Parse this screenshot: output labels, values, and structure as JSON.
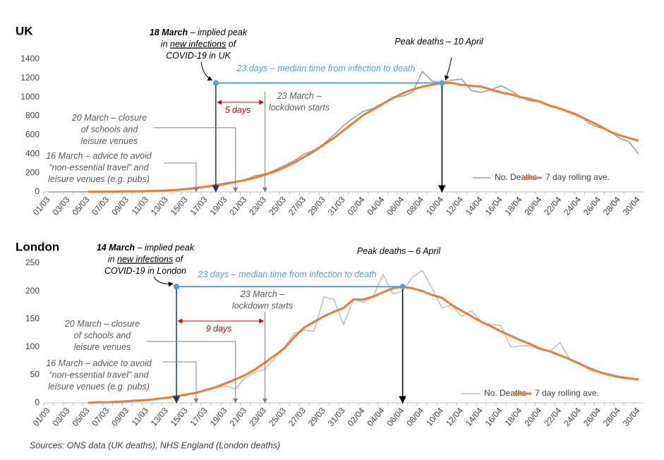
{
  "chart_data": [
    {
      "type": "line",
      "title": "UK",
      "categories": [
        "01/03",
        null,
        "03/03",
        null,
        "05/03",
        null,
        "07/03",
        null,
        "09/03",
        null,
        "11/03",
        null,
        "13/03",
        null,
        "15/03",
        null,
        "17/03",
        null,
        "19/03",
        null,
        "21/03",
        null,
        "23/03",
        null,
        "25/03",
        null,
        "27/03",
        null,
        "29/03",
        null,
        "31/03",
        null,
        "02/04",
        null,
        "04/04",
        null,
        "06/04",
        null,
        "08/04",
        null,
        "10/04",
        null,
        "12/04",
        null,
        "14/04",
        null,
        "16/04",
        null,
        "18/04",
        null,
        "20/04",
        null,
        "22/04",
        null,
        "24/04",
        null,
        "26/04",
        null,
        "28/04",
        null,
        "30/04"
      ],
      "series": [
        {
          "name": "No. Deaths",
          "color": "#a0a0a0",
          "values": [
            0,
            0,
            1,
            1,
            2,
            3,
            3,
            4,
            6,
            8,
            10,
            14,
            20,
            25,
            35,
            50,
            60,
            75,
            95,
            110,
            130,
            170,
            190,
            230,
            280,
            330,
            400,
            440,
            510,
            600,
            700,
            780,
            850,
            880,
            940,
            1000,
            1010,
            1050,
            1270,
            1170,
            1150,
            1180,
            1190,
            1070,
            1050,
            1080,
            1120,
            1070,
            1000,
            960,
            950,
            900,
            880,
            850,
            810,
            720,
            680,
            650,
            570,
            530,
            400
          ]
        },
        {
          "name": "7 day rolling ave.",
          "color": "#ed7d31",
          "values": [
            null,
            null,
            null,
            null,
            2,
            3,
            3,
            4,
            5,
            6,
            8,
            11,
            15,
            21,
            30,
            40,
            55,
            70,
            85,
            105,
            125,
            150,
            180,
            215,
            260,
            310,
            370,
            430,
            500,
            570,
            650,
            730,
            810,
            870,
            930,
            990,
            1040,
            1080,
            1110,
            1130,
            1150,
            1150,
            1130,
            1120,
            1110,
            1080,
            1050,
            1030,
            1000,
            980,
            950,
            910,
            880,
            840,
            800,
            750,
            700,
            640,
            600,
            570,
            540
          ]
        }
      ],
      "ylim": [
        0,
        1400
      ],
      "yticks": [
        0,
        200,
        400,
        600,
        800,
        1000,
        1200,
        1400
      ],
      "grid": false,
      "legend": "lower right",
      "annotations": [
        {
          "lines": [
            [
              "18 March",
              " – implied peak"
            ],
            [
              "in ",
              "new infections",
              " of"
            ],
            [
              "COVID-19 in UK"
            ]
          ]
        },
        {
          "lines": [
            [
              "Peak deaths – 10 April"
            ]
          ]
        },
        {
          "lines": [
            [
              "23 days – median time from infection to death"
            ]
          ]
        },
        {
          "lines": [
            [
              "5 days"
            ]
          ]
        },
        {
          "lines": [
            [
              "23 March –"
            ],
            [
              "lockdown starts"
            ]
          ]
        },
        {
          "lines": [
            [
              "20 March – closure"
            ],
            [
              "of schools and"
            ],
            [
              "leisure venues"
            ]
          ]
        },
        {
          "lines": [
            [
              "16 March – advice to avoid"
            ],
            [
              "“non-essential travel” and"
            ],
            [
              "leisure venues (e.g. pubs)"
            ]
          ]
        }
      ]
    },
    {
      "type": "line",
      "title": "London",
      "categories": [
        "01/03",
        null,
        "03/03",
        null,
        "05/03",
        null,
        "07/03",
        null,
        "09/03",
        null,
        "11/03",
        null,
        "13/03",
        null,
        "15/03",
        null,
        "17/03",
        null,
        "19/03",
        null,
        "21/03",
        null,
        "23/03",
        null,
        "25/03",
        null,
        "27/03",
        null,
        "29/03",
        null,
        "31/03",
        null,
        "02/04",
        null,
        "04/04",
        null,
        "06/04",
        null,
        "08/04",
        null,
        "10/04",
        null,
        "12/04",
        null,
        "14/04",
        null,
        "16/04",
        null,
        "18/04",
        null,
        "20/04",
        null,
        "22/04",
        null,
        "24/04",
        null,
        "26/04",
        null,
        "28/04",
        null,
        "30/04"
      ],
      "series": [
        {
          "name": "No. Deaths",
          "color": "#c0c0c0",
          "values": [
            null,
            null,
            null,
            null,
            0,
            0,
            1,
            1,
            2,
            3,
            5,
            7,
            8,
            12,
            14,
            18,
            22,
            28,
            30,
            25,
            45,
            55,
            60,
            80,
            100,
            125,
            130,
            128,
            190,
            185,
            140,
            185,
            180,
            190,
            230,
            195,
            200,
            225,
            237,
            205,
            170,
            175,
            155,
            165,
            145,
            140,
            138,
            100,
            102,
            102,
            95,
            92,
            108,
            78,
            72,
            58,
            55,
            52,
            48,
            45,
            42
          ]
        },
        {
          "name": "7 day rolling ave.",
          "color": "#ed7d31",
          "values": [
            null,
            null,
            null,
            null,
            0,
            1,
            1,
            2,
            3,
            4,
            5,
            7,
            9,
            12,
            15,
            18,
            23,
            28,
            35,
            42,
            50,
            60,
            72,
            85,
            98,
            118,
            135,
            145,
            155,
            163,
            170,
            185,
            185,
            190,
            198,
            205,
            208,
            205,
            200,
            193,
            188,
            175,
            165,
            155,
            145,
            137,
            128,
            120,
            112,
            105,
            97,
            92,
            85,
            78,
            70,
            62,
            55,
            50,
            46,
            44,
            42
          ]
        }
      ],
      "ylim": [
        0,
        250
      ],
      "yticks": [
        0,
        50,
        100,
        150,
        200,
        250
      ],
      "grid": false,
      "legend": "lower right",
      "annotations": [
        {
          "lines": [
            [
              "14 March",
              " – implied peak"
            ],
            [
              "in ",
              "new infections",
              " of"
            ],
            [
              "COVID-19 in London"
            ]
          ]
        },
        {
          "lines": [
            [
              "Peak deaths – 6 April"
            ]
          ]
        },
        {
          "lines": [
            [
              "23 days – median time from infection to death"
            ]
          ]
        },
        {
          "lines": [
            [
              "9 days"
            ]
          ]
        },
        {
          "lines": [
            [
              "23 March –"
            ],
            [
              "lockdown starts"
            ]
          ]
        },
        {
          "lines": [
            [
              "20 March – closure"
            ],
            [
              "of schools and"
            ],
            [
              "leisure venues"
            ]
          ]
        },
        {
          "lines": [
            [
              "16 March – advice to avoid"
            ],
            [
              "“non-essential travel” and"
            ],
            [
              "leisure venues (e.g. pubs)"
            ]
          ]
        }
      ]
    }
  ],
  "footer": "Sources: ONS data (UK deaths), NHS England (London deaths)"
}
